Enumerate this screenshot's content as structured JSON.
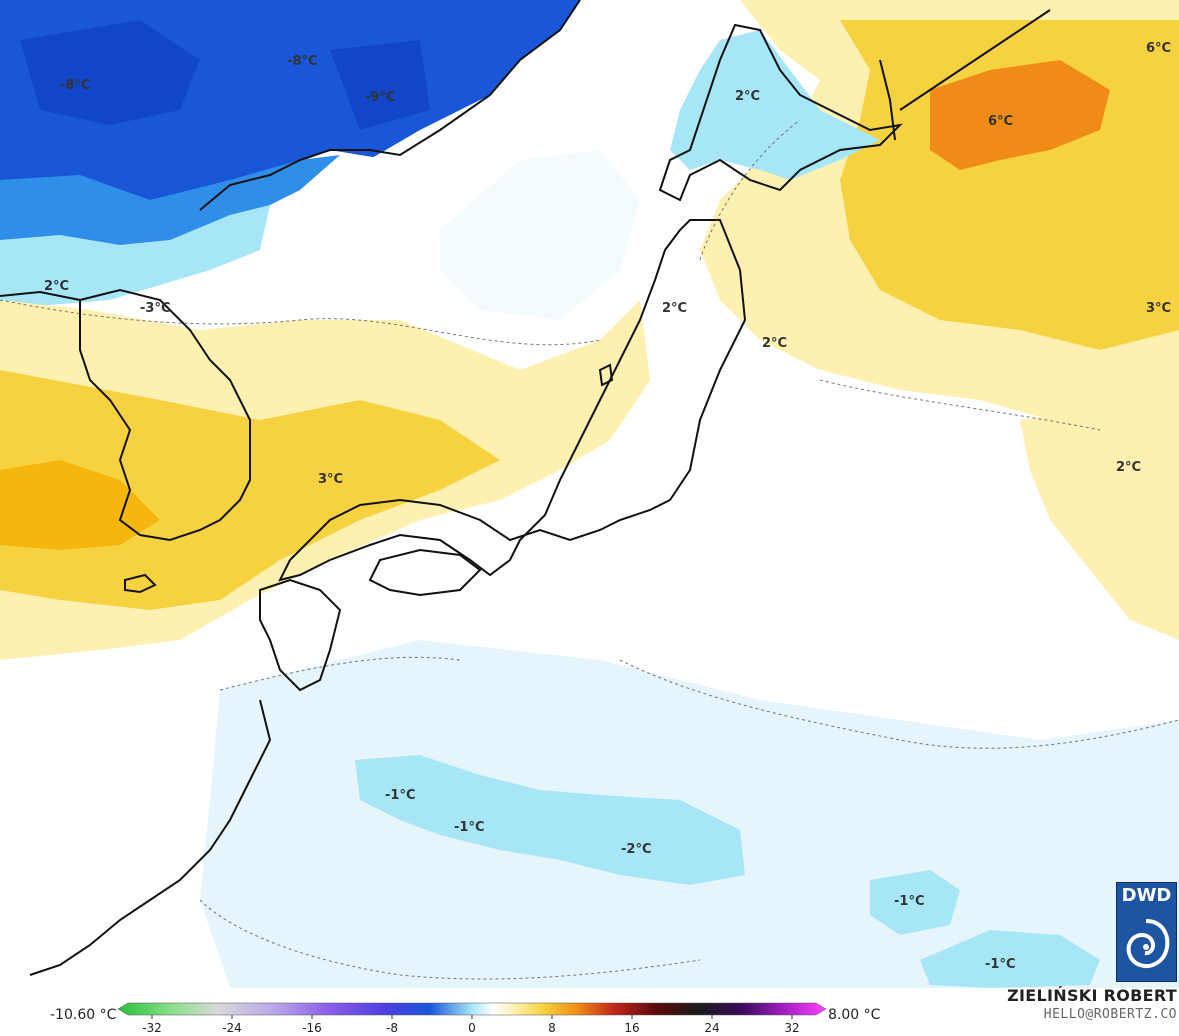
{
  "map": {
    "temperature_labels": [
      "-8°C",
      "-8°C",
      "-9°C",
      "2°C",
      "-3°C",
      "2°C",
      "2°C",
      "2°C",
      "6°C",
      "6°C",
      "3°C",
      "3°C",
      "2°C",
      "-1°C",
      "-1°C",
      "-2°C",
      "-1°C",
      "-1°C"
    ],
    "colors": {
      "ocean_neutral": "#ffffff",
      "light_warm": "#fdf0b0",
      "warm": "#f7d240",
      "warmer": "#f5b60f",
      "hot": "#ef8b16",
      "light_cool": "#e5f5fb",
      "cool": "#a6e6f7",
      "cold": "#2f8ee8",
      "colder": "#1a57d8",
      "coastline": "#111111"
    }
  },
  "legend": {
    "min_label": "-10.60 °C",
    "max_label": "8.00 °C",
    "ticks": [
      "-32",
      "-24",
      "-16",
      "-8",
      "0",
      "8",
      "16",
      "24",
      "32"
    ]
  },
  "credit": {
    "name": "ZIELIŃSKI ROBERT",
    "email": "HELLO@ROBERTZ.CO"
  },
  "logo": {
    "text": "DWD"
  }
}
